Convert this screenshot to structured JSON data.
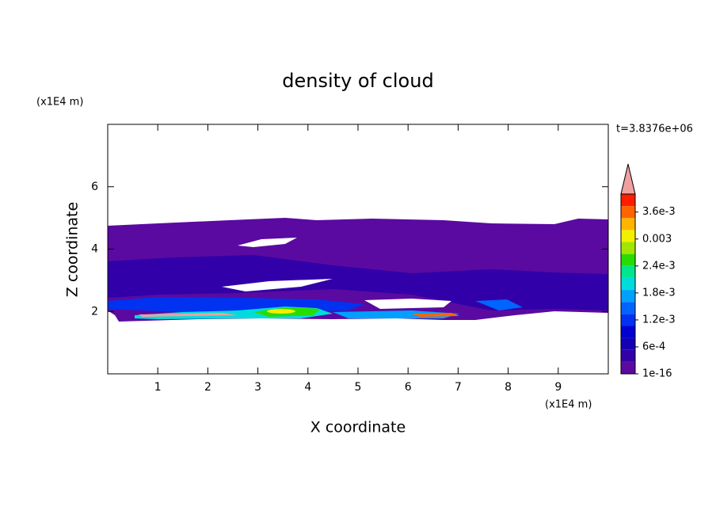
{
  "chart_data": {
    "type": "contour",
    "title": "density of cloud",
    "time_label": "t=3.8376e+06",
    "x_label": "X coordinate",
    "y_label": "Z coordinate",
    "x_unit": "(x1E4 m)",
    "y_unit": "(x1E4 m)",
    "xlim": [
      0,
      10
    ],
    "xticks": [
      1,
      2,
      3,
      4,
      5,
      6,
      7,
      8,
      9
    ],
    "ylim": [
      0,
      8
    ],
    "yticks": [
      2,
      4,
      6
    ],
    "clim": [
      1e-16,
      0.004
    ],
    "cticks": [
      {
        "value": 1e-16,
        "label": "1e-16"
      },
      {
        "value": 0.0006,
        "label": "6e-4"
      },
      {
        "value": 0.0012,
        "label": "1.2e-3"
      },
      {
        "value": 0.0018,
        "label": "1.8e-3"
      },
      {
        "value": 0.0024,
        "label": "2.4e-3"
      },
      {
        "value": 0.003,
        "label": "0.003"
      },
      {
        "value": 0.0036,
        "label": "3.6e-3"
      }
    ],
    "colors": [
      "#5a0aa0",
      "#3200a8",
      "#1400b4",
      "#0000d2",
      "#0032f0",
      "#0064ff",
      "#00a0ff",
      "#00dcdc",
      "#00e68c",
      "#28dc00",
      "#a0e600",
      "#f0f000",
      "#ffb400",
      "#ff6400",
      "#ff1e00"
    ],
    "extend_color": "#f0a0a0"
  }
}
